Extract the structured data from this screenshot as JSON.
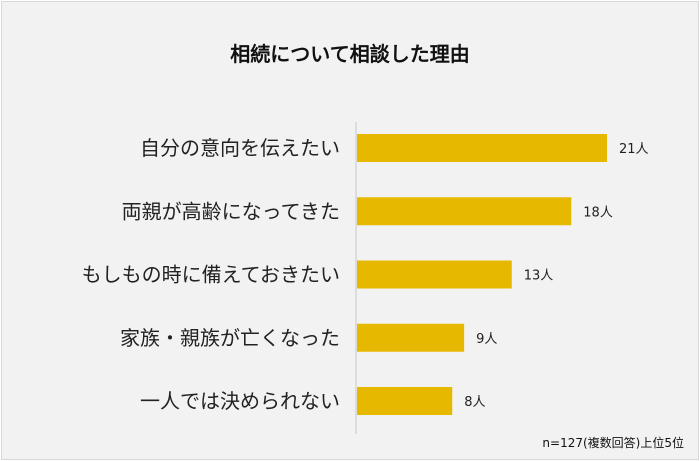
{
  "chart_data": {
    "type": "bar",
    "orientation": "horizontal",
    "title": "相続について相談した理由",
    "categories": [
      "自分の意向を伝えたい",
      "両親が高齢になってきた",
      "もしもの時に備えておきたい",
      "家族・親族が亡くなった",
      "一人では決められない"
    ],
    "values": [
      21,
      18,
      13,
      9,
      8
    ],
    "value_labels": [
      "21人",
      "18人",
      "13人",
      "9人",
      "8人"
    ],
    "unit": "人",
    "grid": false,
    "bar_color": "#e6b800",
    "note": "n=127(複数回答)上位5位"
  }
}
